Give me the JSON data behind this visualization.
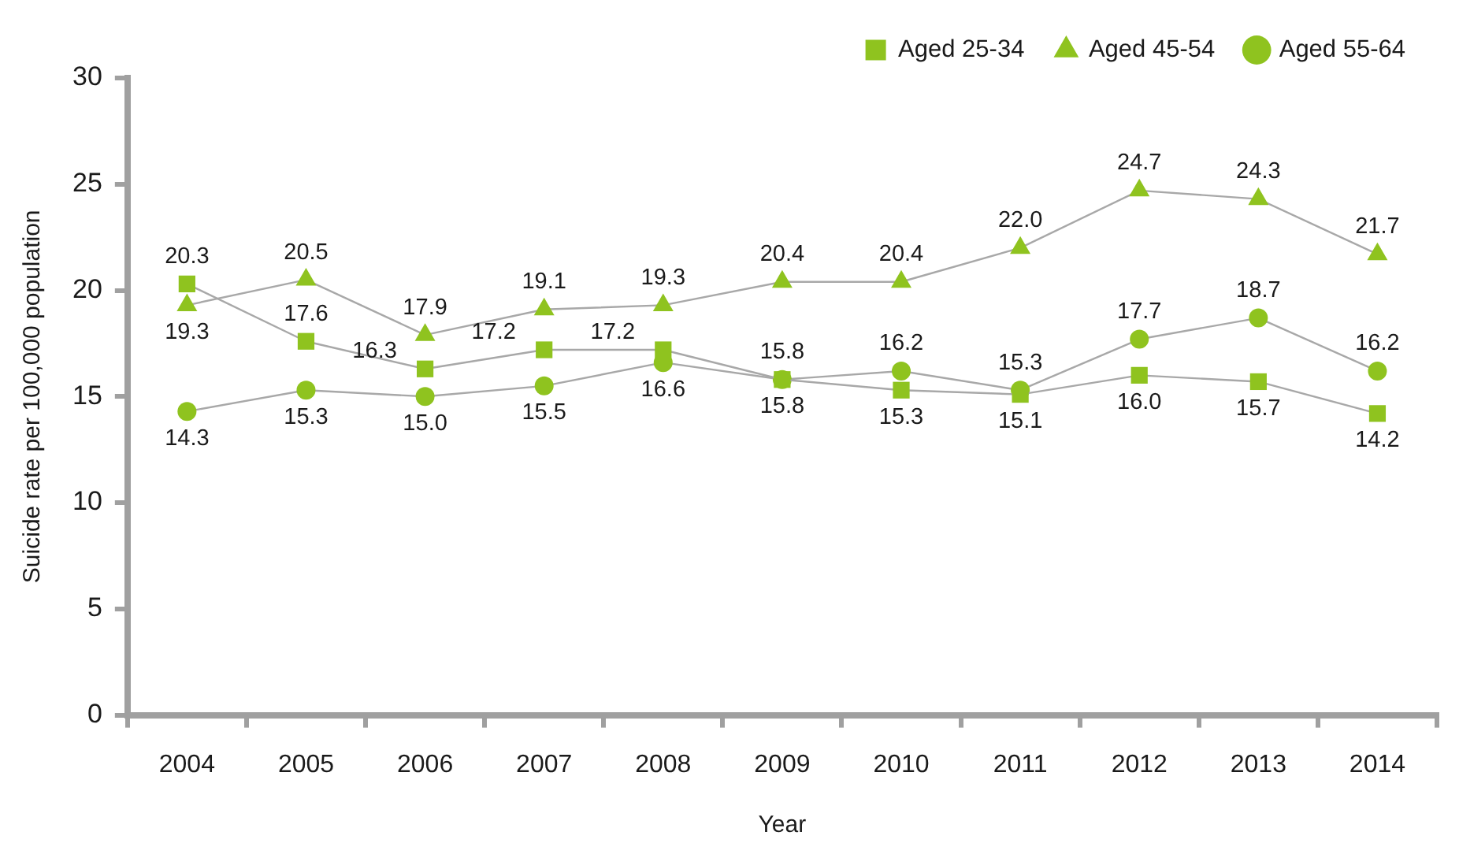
{
  "chart_data": {
    "type": "line",
    "xlabel": "Year",
    "ylabel": "Suicide rate per 100,000 population",
    "categories": [
      "2004",
      "2005",
      "2006",
      "2007",
      "2008",
      "2009",
      "2010",
      "2011",
      "2012",
      "2013",
      "2014"
    ],
    "series": [
      {
        "name": "Aged 25-34",
        "color": "#8fc31f",
        "marker": "square",
        "values": [
          20.3,
          17.6,
          16.3,
          17.2,
          17.2,
          15.8,
          15.3,
          15.1,
          16.0,
          15.7,
          14.2
        ],
        "value_labels": [
          "20.3",
          "17.6",
          "16.3",
          "17.2",
          "17.2",
          "15.8",
          "15.3",
          "15.1",
          "16.0",
          "15.7",
          "14.2"
        ]
      },
      {
        "name": "Aged 45-54",
        "color": "#8fc31f",
        "marker": "triangle",
        "values": [
          19.3,
          20.5,
          17.9,
          19.1,
          19.3,
          20.4,
          20.4,
          22.0,
          24.7,
          24.3,
          21.7
        ],
        "value_labels": [
          "19.3",
          "20.5",
          "17.9",
          "19.1",
          "19.3",
          "20.4",
          "20.4",
          "22.0",
          "24.7",
          "24.3",
          "21.7"
        ]
      },
      {
        "name": "Aged 55-64",
        "color": "#8fc31f",
        "marker": "circle",
        "values": [
          14.3,
          15.3,
          15.0,
          15.5,
          16.6,
          15.8,
          16.2,
          15.3,
          17.7,
          18.7,
          16.2
        ],
        "value_labels": [
          "14.3",
          "15.3",
          "15.0",
          "15.5",
          "16.6",
          "15.8",
          "16.2",
          "15.3",
          "17.7",
          "18.7",
          "16.2"
        ]
      }
    ],
    "ylim": [
      0,
      30
    ],
    "yticks": [
      0,
      5,
      10,
      15,
      20,
      25,
      30
    ],
    "grid": false,
    "legend": "top right",
    "line_style": "solid"
  }
}
